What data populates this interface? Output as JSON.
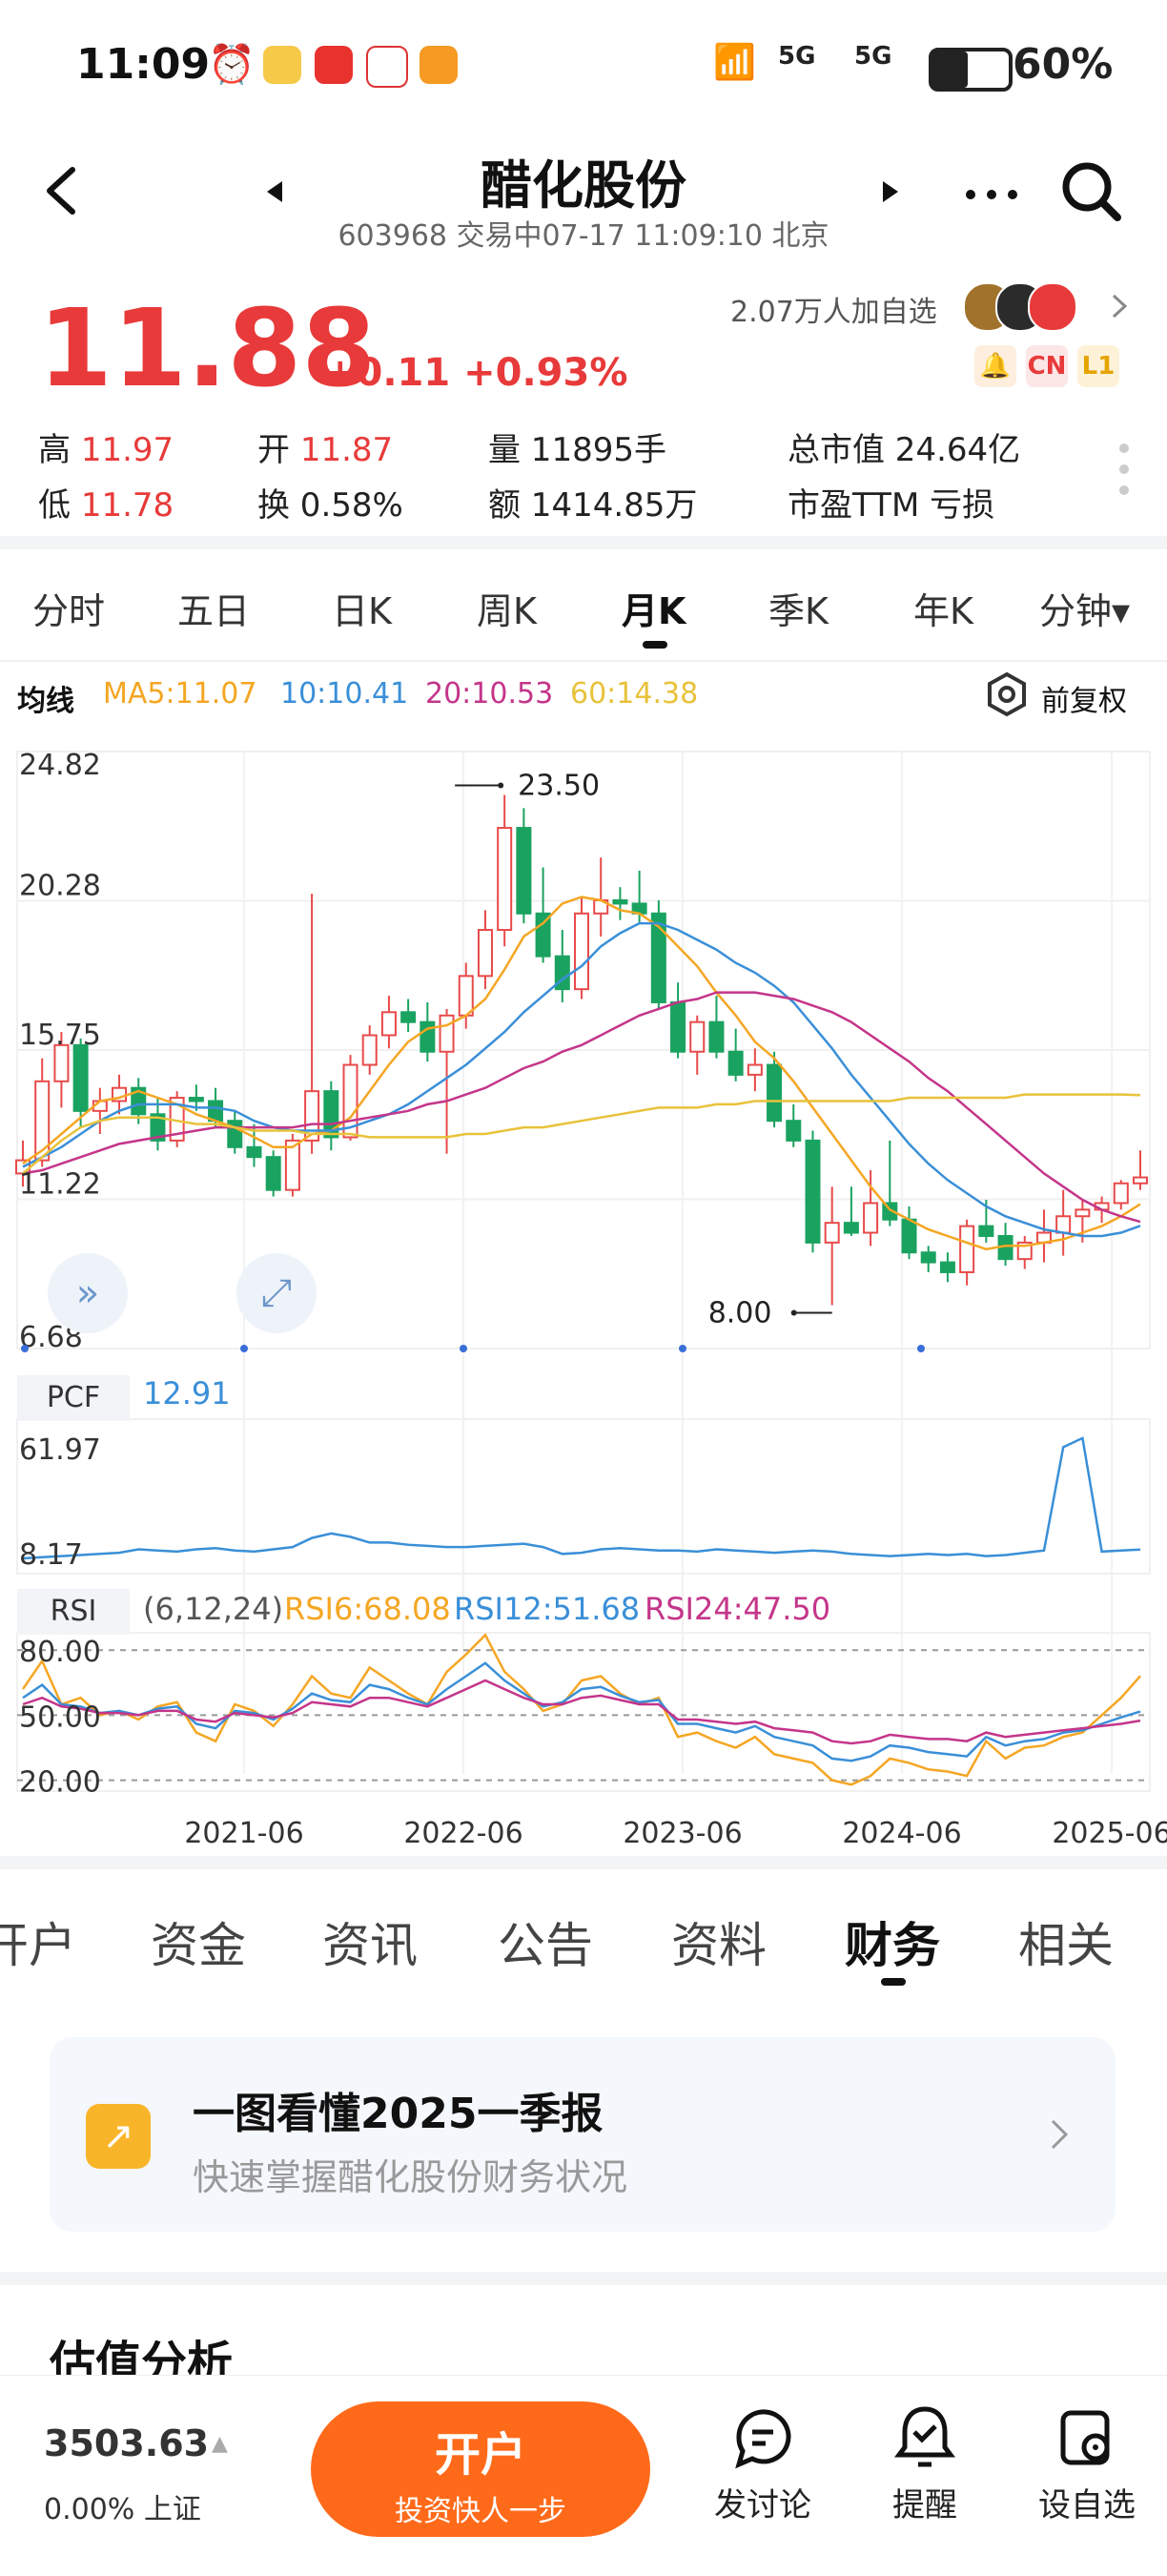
{
  "status_bar": {
    "time": "11:09",
    "net1": "5G",
    "net2": "5G",
    "battery": "60%"
  },
  "header": {
    "title": "醋化股份",
    "subtitle": "603968 交易中07-17 11:09:10 北京"
  },
  "quote": {
    "price": "11.88",
    "change": "+0.11 +0.93%",
    "followers": "2.07万人加自选",
    "badges": [
      "CN",
      "L1"
    ],
    "stats": {
      "high_label": "高",
      "high": "11.97",
      "open_label": "开",
      "open": "11.87",
      "volume": "量 11895手",
      "market_cap": "总市值 24.64亿",
      "low_label": "低",
      "low": "11.78",
      "turnover": "换 0.58%",
      "amount": "额 1414.85万",
      "pe": "市盈TTM 亏损"
    }
  },
  "period_tabs": [
    "分时",
    "五日",
    "日K",
    "周K",
    "月K",
    "季K",
    "年K",
    "分钟▾"
  ],
  "active_period": "月K",
  "ma": {
    "label": "均线",
    "ma5": "MA5:11.07",
    "ma10": "10:10.41",
    "ma20": "20:10.53",
    "ma60": "60:14.38",
    "adjust": "前复权",
    "colors": {
      "ma5": "#f5a623",
      "ma10": "#3a8fd8",
      "ma20": "#c4358a",
      "ma60": "#e8c23a"
    }
  },
  "chart_data": [
    {
      "type": "candlestick",
      "title": "月K",
      "y_ticks": [
        "24.82",
        "20.28",
        "15.75",
        "11.22",
        "6.68"
      ],
      "ylim": [
        6.68,
        24.82
      ],
      "x_ticks": [
        "2021-06",
        "2022-06",
        "2023-06",
        "2024-06",
        "2025-06"
      ],
      "annotations": [
        {
          "label": "23.50",
          "value": 23.5
        },
        {
          "label": "8.00",
          "value": 8.0
        }
      ],
      "candles": [
        [
          12.0,
          13.0,
          11.6,
          12.4
        ],
        [
          12.4,
          15.5,
          12.2,
          14.8
        ],
        [
          14.8,
          16.3,
          14.0,
          15.9
        ],
        [
          15.9,
          16.1,
          13.4,
          13.9
        ],
        [
          13.9,
          14.6,
          13.2,
          14.2
        ],
        [
          14.2,
          15.0,
          13.8,
          14.6
        ],
        [
          14.6,
          14.9,
          13.5,
          13.8
        ],
        [
          13.8,
          14.3,
          12.7,
          13.0
        ],
        [
          13.0,
          14.5,
          12.8,
          14.3
        ],
        [
          14.3,
          14.7,
          13.9,
          14.2
        ],
        [
          14.2,
          14.6,
          13.4,
          13.6
        ],
        [
          13.6,
          13.9,
          12.6,
          12.8
        ],
        [
          12.8,
          13.5,
          12.2,
          12.5
        ],
        [
          12.5,
          12.7,
          11.3,
          11.5
        ],
        [
          11.5,
          13.2,
          11.3,
          13.0
        ],
        [
          13.0,
          20.5,
          12.6,
          14.5
        ],
        [
          14.5,
          14.8,
          12.7,
          13.1
        ],
        [
          13.1,
          15.6,
          13.0,
          15.3
        ],
        [
          15.3,
          16.5,
          15.0,
          16.2
        ],
        [
          16.2,
          17.4,
          15.8,
          16.9
        ],
        [
          16.9,
          17.3,
          16.3,
          16.6
        ],
        [
          16.6,
          17.2,
          15.4,
          15.7
        ],
        [
          15.7,
          17.0,
          12.6,
          16.8
        ],
        [
          16.8,
          18.4,
          16.4,
          18.0
        ],
        [
          18.0,
          20.0,
          17.6,
          19.4
        ],
        [
          19.4,
          23.5,
          18.9,
          22.5
        ],
        [
          22.5,
          23.1,
          19.6,
          19.9
        ],
        [
          19.9,
          21.3,
          18.4,
          18.6
        ],
        [
          18.6,
          19.4,
          17.2,
          17.6
        ],
        [
          17.6,
          20.4,
          17.3,
          19.9
        ],
        [
          19.9,
          21.6,
          19.2,
          20.3
        ],
        [
          20.3,
          20.7,
          19.7,
          20.2
        ],
        [
          20.2,
          21.2,
          19.6,
          19.9
        ],
        [
          19.9,
          20.3,
          17.0,
          17.2
        ],
        [
          17.2,
          17.8,
          15.5,
          15.7
        ],
        [
          15.7,
          16.8,
          15.0,
          16.6
        ],
        [
          16.6,
          17.4,
          15.5,
          15.7
        ],
        [
          15.7,
          16.4,
          14.8,
          15.0
        ],
        [
          15.0,
          15.8,
          14.5,
          15.3
        ],
        [
          15.3,
          15.7,
          13.4,
          13.6
        ],
        [
          13.6,
          14.1,
          12.8,
          13.0
        ],
        [
          13.0,
          13.3,
          9.6,
          9.9
        ],
        [
          9.9,
          11.6,
          8.0,
          10.5
        ],
        [
          10.5,
          11.6,
          10.1,
          10.2
        ],
        [
          10.2,
          12.1,
          9.8,
          11.1
        ],
        [
          11.1,
          13.0,
          10.4,
          10.6
        ],
        [
          10.6,
          11.0,
          9.4,
          9.6
        ],
        [
          9.6,
          9.8,
          9.0,
          9.3
        ],
        [
          9.3,
          9.6,
          8.7,
          9.0
        ],
        [
          9.0,
          10.6,
          8.6,
          10.4
        ],
        [
          10.4,
          11.2,
          9.9,
          10.1
        ],
        [
          10.1,
          10.5,
          9.2,
          9.4
        ],
        [
          9.4,
          10.1,
          9.1,
          9.9
        ],
        [
          9.9,
          10.9,
          9.3,
          10.2
        ],
        [
          10.2,
          11.5,
          9.5,
          10.7
        ],
        [
          10.7,
          11.2,
          9.9,
          10.9
        ],
        [
          10.9,
          11.3,
          10.5,
          11.1
        ],
        [
          11.1,
          11.8,
          10.9,
          11.7
        ],
        [
          11.7,
          12.7,
          11.5,
          11.88
        ]
      ],
      "series": [
        {
          "name": "MA5",
          "values": [
            12.3,
            12.7,
            13.2,
            13.7,
            14.2,
            14.3,
            14.5,
            14.3,
            14.1,
            13.8,
            13.6,
            13.4,
            13.1,
            12.8,
            12.8,
            13.2,
            13.3,
            13.7,
            14.5,
            15.3,
            16.0,
            16.4,
            16.5,
            16.8,
            17.3,
            18.2,
            19.2,
            19.6,
            20.2,
            20.4,
            20.3,
            20.0,
            19.9,
            19.5,
            18.9,
            18.3,
            17.5,
            16.8,
            16.0,
            15.5,
            14.8,
            14.0,
            13.2,
            12.4,
            11.6,
            10.9,
            10.6,
            10.3,
            10.1,
            9.9,
            9.7,
            9.8,
            9.8,
            9.9,
            10.0,
            10.2,
            10.4,
            10.7,
            11.07
          ]
        },
        {
          "name": "10",
          "values": [
            12.2,
            12.5,
            12.8,
            13.2,
            13.6,
            13.9,
            14.1,
            14.1,
            14.1,
            14.0,
            14.0,
            13.9,
            13.6,
            13.4,
            13.3,
            13.3,
            13.3,
            13.4,
            13.6,
            13.8,
            14.1,
            14.5,
            14.9,
            15.3,
            15.8,
            16.3,
            16.9,
            17.4,
            17.9,
            18.3,
            18.9,
            19.3,
            19.6,
            19.6,
            19.4,
            19.1,
            18.8,
            18.4,
            18.1,
            17.7,
            17.2,
            16.5,
            15.8,
            15.0,
            14.3,
            13.6,
            12.9,
            12.3,
            11.8,
            11.4,
            11.0,
            10.7,
            10.5,
            10.3,
            10.2,
            10.1,
            10.1,
            10.2,
            10.41
          ]
        },
        {
          "name": "20",
          "values": [
            12.0,
            12.1,
            12.3,
            12.5,
            12.7,
            12.9,
            13.0,
            13.1,
            13.2,
            13.3,
            13.4,
            13.4,
            13.4,
            13.4,
            13.4,
            13.5,
            13.5,
            13.6,
            13.7,
            13.8,
            13.9,
            14.1,
            14.2,
            14.4,
            14.6,
            14.9,
            15.2,
            15.4,
            15.7,
            15.9,
            16.2,
            16.5,
            16.8,
            17.0,
            17.2,
            17.3,
            17.5,
            17.5,
            17.5,
            17.4,
            17.3,
            17.1,
            16.9,
            16.6,
            16.2,
            15.8,
            15.4,
            14.9,
            14.5,
            14.0,
            13.5,
            13.0,
            12.5,
            12.0,
            11.6,
            11.2,
            10.9,
            10.7,
            10.53
          ]
        },
        {
          "name": "60",
          "values": [
            12.0,
            12.5,
            13.0,
            13.4,
            13.6,
            13.7,
            13.7,
            13.7,
            13.6,
            13.5,
            13.5,
            13.4,
            13.3,
            13.3,
            13.3,
            13.2,
            13.2,
            13.2,
            13.1,
            13.1,
            13.1,
            13.1,
            13.1,
            13.2,
            13.2,
            13.3,
            13.4,
            13.4,
            13.5,
            13.6,
            13.7,
            13.8,
            13.9,
            14.0,
            14.0,
            14.0,
            14.1,
            14.1,
            14.2,
            14.2,
            14.2,
            14.2,
            14.2,
            14.2,
            14.2,
            14.2,
            14.3,
            14.3,
            14.3,
            14.3,
            14.3,
            14.3,
            14.4,
            14.4,
            14.4,
            14.4,
            14.4,
            14.4,
            14.38
          ]
        }
      ]
    },
    {
      "type": "line",
      "title": "PCF",
      "current": "12.91",
      "y_ticks": [
        "61.97",
        "8.17"
      ],
      "ylim": [
        8.17,
        61.97
      ],
      "series": [
        {
          "name": "PCF",
          "values": [
            9.0,
            9.5,
            10.0,
            10.5,
            11.0,
            11.5,
            13.0,
            12.5,
            12.0,
            13.0,
            13.5,
            12.5,
            12.0,
            13.0,
            14.0,
            18.0,
            20.0,
            18.5,
            16.0,
            16.0,
            15.0,
            14.5,
            14.0,
            14.0,
            14.5,
            15.0,
            15.5,
            14.0,
            11.0,
            11.5,
            13.0,
            13.5,
            13.0,
            12.5,
            12.5,
            12.0,
            13.0,
            12.5,
            12.0,
            11.5,
            12.0,
            12.5,
            12.0,
            11.0,
            10.5,
            10.0,
            10.5,
            11.0,
            10.5,
            11.0,
            10.0,
            10.5,
            11.5,
            12.5,
            58.0,
            62.0,
            12.0,
            12.5,
            12.91
          ]
        }
      ]
    },
    {
      "type": "line",
      "title": "RSI",
      "params": "(6,12,24)",
      "y_ticks": [
        "80.00",
        "50.00",
        "20.00"
      ],
      "ylim": [
        15,
        88
      ],
      "series": [
        {
          "name": "RSI6:68.08",
          "values": [
            62,
            75,
            55,
            58,
            50,
            52,
            48,
            54,
            56,
            42,
            38,
            55,
            52,
            45,
            55,
            68,
            60,
            58,
            72,
            66,
            60,
            55,
            70,
            78,
            87,
            70,
            62,
            52,
            55,
            66,
            68,
            60,
            55,
            58,
            40,
            42,
            38,
            35,
            40,
            32,
            30,
            28,
            20,
            18,
            22,
            30,
            28,
            25,
            24,
            22,
            38,
            30,
            35,
            36,
            40,
            42,
            50,
            58,
            68.08
          ]
        },
        {
          "name": "RSI12:51.68",
          "values": [
            58,
            64,
            55,
            54,
            51,
            52,
            50,
            53,
            54,
            46,
            44,
            52,
            51,
            48,
            53,
            60,
            57,
            56,
            64,
            62,
            58,
            55,
            62,
            68,
            74,
            66,
            60,
            54,
            56,
            62,
            63,
            59,
            56,
            57,
            46,
            46,
            44,
            42,
            45,
            40,
            38,
            36,
            30,
            29,
            31,
            36,
            35,
            33,
            32,
            31,
            40,
            36,
            38,
            39,
            42,
            43,
            46,
            49,
            51.68
          ]
        },
        {
          "name": "RSI24:47.50",
          "values": [
            55,
            58,
            54,
            53,
            51,
            51,
            50,
            52,
            52,
            48,
            47,
            51,
            50,
            49,
            51,
            56,
            55,
            54,
            58,
            58,
            56,
            54,
            58,
            62,
            66,
            62,
            58,
            55,
            55,
            58,
            59,
            57,
            55,
            55,
            48,
            48,
            47,
            46,
            47,
            44,
            43,
            42,
            38,
            37,
            38,
            41,
            40,
            39,
            39,
            38,
            42,
            40,
            41,
            42,
            43,
            44,
            45,
            46,
            47.5
          ]
        }
      ]
    }
  ],
  "chart_labels": {
    "pcf_label": "PCF",
    "rsi_label": "RSI",
    "rsi_params": "(6,12,24)"
  },
  "info_tabs": [
    "开户",
    "资金",
    "资讯",
    "公告",
    "资料",
    "财务",
    "相关"
  ],
  "active_info_tab": "财务",
  "report_card": {
    "title": "一图看懂2025一季报",
    "subtitle": "快速掌握醋化股份财务状况"
  },
  "section_title": "估值分析",
  "bottom": {
    "index_value": "3503.63",
    "index_change": "0.00% 上证",
    "open_account": "开户",
    "open_account_sub": "投资快人一步",
    "discuss": "发讨论",
    "remind": "提醒",
    "watchlist": "设自选"
  }
}
